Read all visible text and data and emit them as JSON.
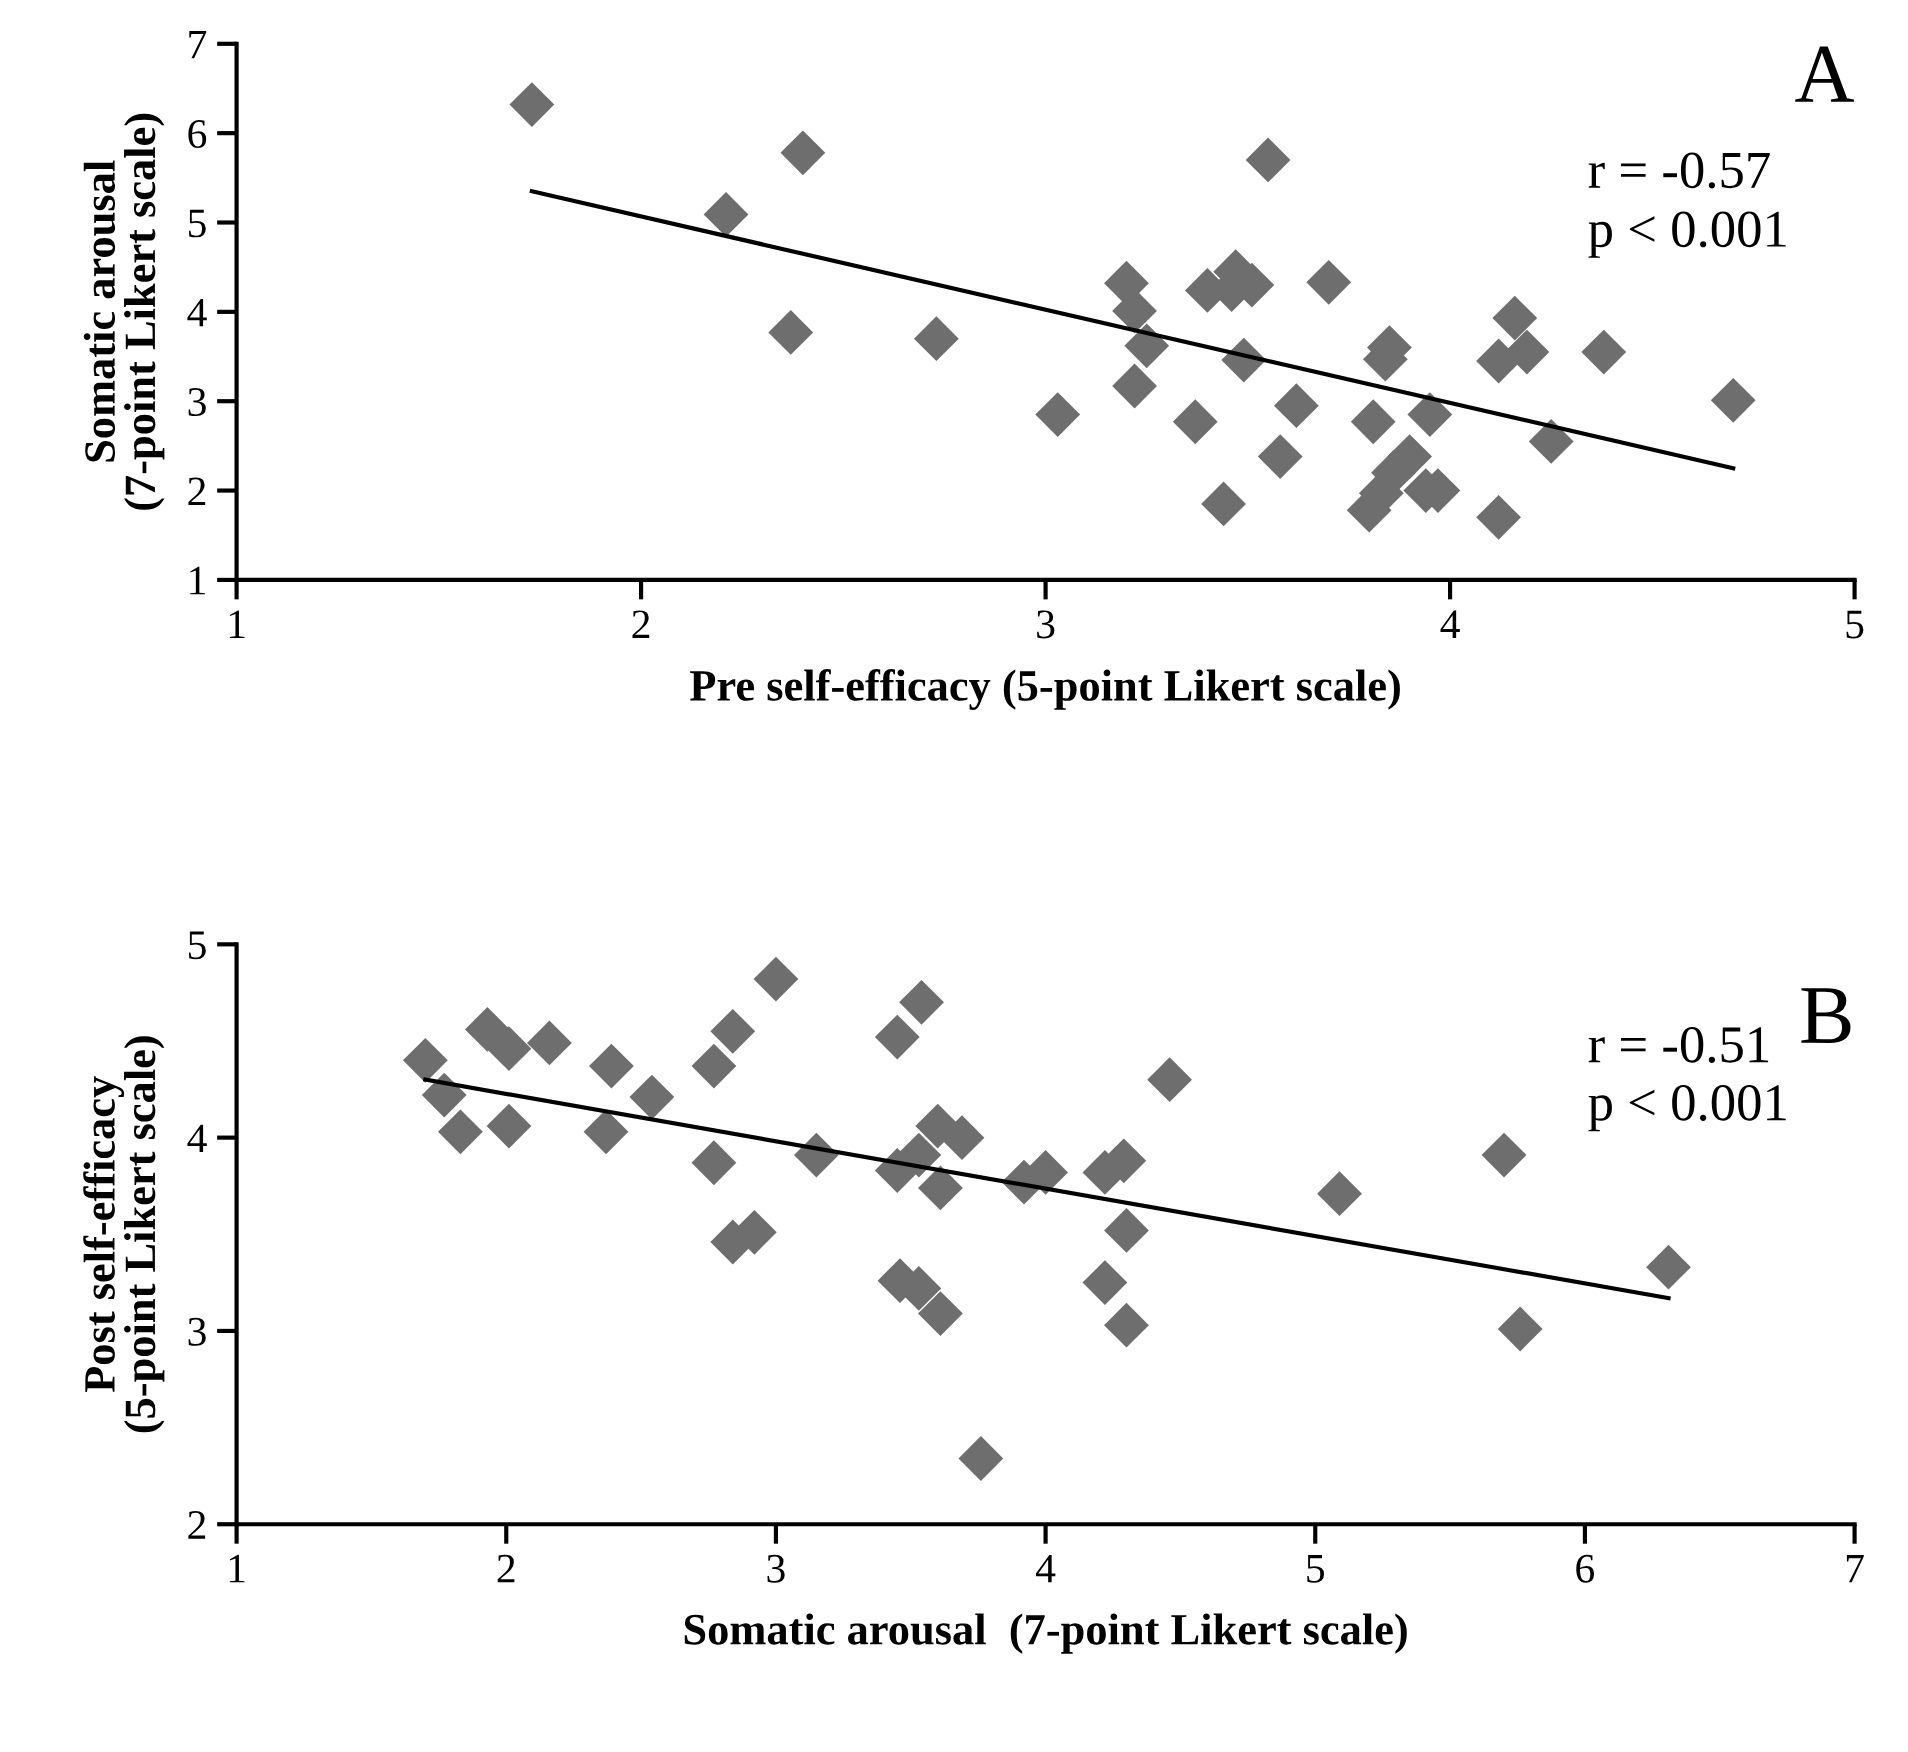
{
  "chart_data": [
    {
      "type": "scatter",
      "xlabel": "Pre self-efficacy (5-point Likert scale)",
      "ylabel": "Somatic arousal\n(7-point Likert scale)",
      "xlim": [
        1,
        5
      ],
      "ylim": [
        1,
        7
      ],
      "xticks": [
        1,
        2,
        3,
        4,
        5
      ],
      "yticks": [
        1,
        2,
        3,
        4,
        5,
        6,
        7
      ],
      "grid": false,
      "marker": "diamond",
      "annotations": [
        "A",
        "r = -0.57",
        "p < 0.001"
      ],
      "series": [
        {
          "color": "#6e6e6e",
          "x": [
            1.73,
            2.21,
            2.4,
            2.37,
            2.73,
            3.03,
            3.2,
            3.22,
            3.22,
            3.25,
            3.37,
            3.4,
            3.44,
            3.46,
            3.47,
            3.49,
            3.51,
            3.55,
            3.58,
            3.62,
            3.7,
            3.8,
            3.81,
            3.83,
            3.84,
            3.85,
            3.86,
            3.9,
            3.94,
            3.95,
            3.97,
            4.12,
            4.12,
            4.16,
            4.19,
            4.25,
            4.38,
            4.7
          ],
          "values": [
            6.32,
            5.09,
            5.78,
            3.77,
            3.7,
            2.85,
            4.32,
            4.01,
            3.17,
            3.62,
            2.77,
            4.24,
            1.85,
            4.25,
            4.45,
            3.46,
            4.3,
            5.7,
            2.38,
            2.95,
            4.33,
            1.78,
            2.77,
            1.97,
            3.47,
            3.6,
            2.2,
            2.38,
            2.0,
            2.85,
            2.0,
            1.7,
            3.45,
            3.93,
            3.55,
            2.55,
            3.55,
            3.01
          ]
        },
        {
          "type": "line",
          "color": "#000000",
          "marker": "none",
          "x": [
            1.73,
            4.7
          ],
          "values": [
            5.35,
            2.25
          ]
        }
      ]
    },
    {
      "type": "scatter",
      "xlabel": "Somatic arousal  (7-point Likert scale)",
      "ylabel": "Post self-efficacy\n(5-point Likert scale)",
      "xlim": [
        1,
        7
      ],
      "ylim": [
        2,
        5
      ],
      "xticks": [
        1,
        2,
        3,
        4,
        5,
        6,
        7
      ],
      "yticks": [
        2,
        3,
        4,
        5
      ],
      "grid": false,
      "marker": "diamond",
      "annotations": [
        "B",
        "r = -0.51",
        "p < 0.001"
      ],
      "series": [
        {
          "color": "#6e6e6e",
          "x": [
            1.7,
            1.77,
            1.83,
            1.93,
            2.01,
            2.01,
            2.16,
            2.37,
            2.39,
            2.54,
            2.77,
            2.77,
            2.84,
            2.84,
            2.92,
            3.0,
            3.15,
            3.45,
            3.45,
            3.46,
            3.53,
            3.53,
            3.54,
            3.6,
            3.61,
            3.61,
            3.69,
            3.76,
            3.92,
            4.0,
            4.22,
            4.22,
            4.29,
            4.3,
            4.3,
            4.46,
            5.09,
            5.7,
            5.76,
            6.31
          ],
          "values": [
            4.4,
            4.22,
            4.03,
            4.56,
            4.46,
            4.06,
            4.49,
            4.03,
            4.37,
            4.21,
            4.37,
            3.87,
            4.55,
            3.46,
            3.51,
            4.82,
            3.91,
            4.52,
            3.83,
            3.26,
            3.22,
            3.91,
            4.7,
            4.06,
            3.09,
            3.74,
            4.0,
            2.34,
            3.77,
            3.82,
            3.82,
            3.25,
            3.88,
            3.03,
            3.52,
            4.3,
            3.71,
            3.91,
            3.01,
            3.33
          ]
        },
        {
          "type": "line",
          "color": "#000000",
          "marker": "none",
          "x": [
            1.7,
            6.31
          ],
          "values": [
            4.3,
            3.17
          ]
        }
      ]
    }
  ]
}
